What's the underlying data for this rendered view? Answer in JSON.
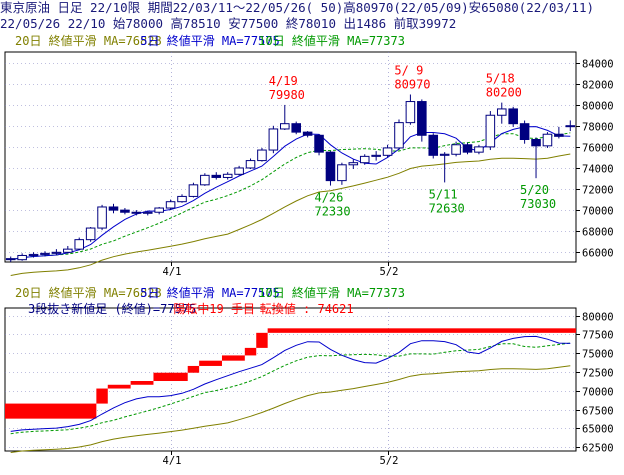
{
  "header": {
    "line1": "東京原油 日足 22/10限 期間22/03/11～22/05/26( 50)高80970(22/05/09)安65080(22/03/11)",
    "line2": "22/05/26 22/10 始78000 高78510 安77500 終78010 出1486 前取39972"
  },
  "colors": {
    "ma20": "#808000",
    "ma5": "#0000cc",
    "ma10": "#009900",
    "candle": "#000080",
    "brick": "#ff0000",
    "annotation_up": "#ff0000",
    "annotation_down": "#009900",
    "grid": "#8080c0"
  },
  "chart_data": [
    {
      "type": "candlestick",
      "legend": [
        {
          "name": "20日 終値平滑 MA=76828",
          "color": "#808000"
        },
        {
          "name": "5日 終値平滑 MA=77575",
          "color": "#0000cc"
        },
        {
          "name": "10日 終値平滑 MA=77373",
          "color": "#009900"
        }
      ],
      "ylim": [
        65080,
        85000
      ],
      "yticks": [
        84000,
        82000,
        80000,
        78000,
        76000,
        74000,
        72000,
        70000,
        68000,
        66000
      ],
      "xticks": [
        {
          "label": "4/1",
          "index": 14
        },
        {
          "label": "5/2",
          "index": 33
        }
      ],
      "n": 50,
      "ohlc": [
        [
          65400,
          65600,
          65080,
          65300
        ],
        [
          65300,
          65900,
          65200,
          65700
        ],
        [
          65700,
          66000,
          65500,
          65800
        ],
        [
          65800,
          66100,
          65600,
          65900
        ],
        [
          65900,
          66300,
          65700,
          66000
        ],
        [
          66000,
          66600,
          65900,
          66300
        ],
        [
          66300,
          67400,
          66200,
          67200
        ],
        [
          67200,
          68400,
          67000,
          68300
        ],
        [
          68300,
          70500,
          68100,
          70300
        ],
        [
          70300,
          70600,
          69700,
          70000
        ],
        [
          70000,
          70200,
          69600,
          69800
        ],
        [
          69800,
          70000,
          69500,
          69700
        ],
        [
          69700,
          69900,
          69500,
          69800
        ],
        [
          69800,
          70300,
          69600,
          70200
        ],
        [
          70200,
          71000,
          70000,
          70800
        ],
        [
          70800,
          71500,
          70700,
          71300
        ],
        [
          71300,
          72600,
          71200,
          72400
        ],
        [
          72400,
          73500,
          72300,
          73300
        ],
        [
          73300,
          73600,
          72900,
          73100
        ],
        [
          73100,
          73600,
          72900,
          73400
        ],
        [
          73400,
          74200,
          73300,
          74000
        ],
        [
          74000,
          74900,
          73900,
          74700
        ],
        [
          74700,
          75900,
          74600,
          75700
        ],
        [
          75700,
          78000,
          75400,
          77700
        ],
        [
          77700,
          79980,
          77600,
          78200
        ],
        [
          78200,
          78400,
          77200,
          77400
        ],
        [
          77400,
          77500,
          76900,
          77100
        ],
        [
          77100,
          77200,
          75200,
          75500
        ],
        [
          75500,
          75600,
          72330,
          72800
        ],
        [
          72800,
          74500,
          72400,
          74300
        ],
        [
          74300,
          74800,
          73900,
          74500
        ],
        [
          74500,
          75300,
          74300,
          75100
        ],
        [
          75100,
          75600,
          74700,
          75200
        ],
        [
          75200,
          76200,
          75000,
          75900
        ],
        [
          75900,
          78600,
          75700,
          78300
        ],
        [
          78300,
          80970,
          78100,
          80300
        ],
        [
          80300,
          80500,
          76500,
          77100
        ],
        [
          77100,
          77300,
          74900,
          75200
        ],
        [
          75200,
          75500,
          72630,
          75300
        ],
        [
          75300,
          76500,
          75100,
          76200
        ],
        [
          76200,
          76400,
          75300,
          75500
        ],
        [
          75500,
          76200,
          75300,
          76000
        ],
        [
          76000,
          79400,
          75700,
          79000
        ],
        [
          79000,
          80200,
          78200,
          79600
        ],
        [
          79600,
          79800,
          77900,
          78200
        ],
        [
          78200,
          78500,
          76300,
          76700
        ],
        [
          76700,
          76900,
          73030,
          76100
        ],
        [
          76100,
          77400,
          75900,
          77200
        ],
        [
          77200,
          77900,
          76800,
          77000
        ],
        [
          78000,
          78510,
          77500,
          78010
        ]
      ],
      "annotations": [
        {
          "label": "4/19",
          "value": "79980",
          "index": 24,
          "type": "high"
        },
        {
          "label": "4/26",
          "value": "72330",
          "index": 28,
          "type": "low"
        },
        {
          "label": "5/ 9",
          "value": "80970",
          "index": 35,
          "type": "high"
        },
        {
          "label": "5/11",
          "value": "72630",
          "index": 38,
          "type": "low"
        },
        {
          "label": "5/18",
          "value": "80200",
          "index": 43,
          "type": "high"
        },
        {
          "label": "5/20",
          "value": "73030",
          "index": 46,
          "type": "low"
        }
      ]
    },
    {
      "type": "three-line-break",
      "legend": [
        {
          "name": "20日 終値平滑 MA=76828",
          "color": "#808000"
        },
        {
          "name": "5日 終値平滑 MA=77575",
          "color": "#0000cc"
        },
        {
          "name": "10日 終値平滑 MA=77373",
          "color": "#009900"
        }
      ],
      "info": {
        "prefix": "3段抜き新値足 (終値)=77575",
        "state": "陽転中",
        "count": "19 手目",
        "switch": "転換値 : 74621"
      },
      "ylim": [
        62000,
        81000
      ],
      "yticks": [
        80000,
        77500,
        75000,
        72500,
        70000,
        67500,
        65000,
        62500
      ],
      "xticks": [
        {
          "label": "4/1",
          "index": 14
        },
        {
          "label": "5/2",
          "index": 33
        }
      ],
      "bricks": [
        {
          "start": 0,
          "end": 8,
          "low": 66300,
          "high": 68300
        },
        {
          "start": 8,
          "end": 9,
          "low": 68300,
          "high": 70300
        },
        {
          "start": 9,
          "end": 11,
          "low": 70300,
          "high": 70800
        },
        {
          "start": 11,
          "end": 13,
          "low": 70800,
          "high": 71300
        },
        {
          "start": 13,
          "end": 16,
          "low": 71300,
          "high": 72400
        },
        {
          "start": 16,
          "end": 17,
          "low": 72400,
          "high": 73300
        },
        {
          "start": 17,
          "end": 19,
          "low": 73300,
          "high": 74000
        },
        {
          "start": 19,
          "end": 21,
          "low": 74000,
          "high": 74700
        },
        {
          "start": 21,
          "end": 22,
          "low": 74700,
          "high": 75700
        },
        {
          "start": 22,
          "end": 23,
          "low": 75700,
          "high": 77700
        },
        {
          "start": 23,
          "end": 50,
          "low": 77700,
          "high": 78300
        }
      ]
    }
  ]
}
